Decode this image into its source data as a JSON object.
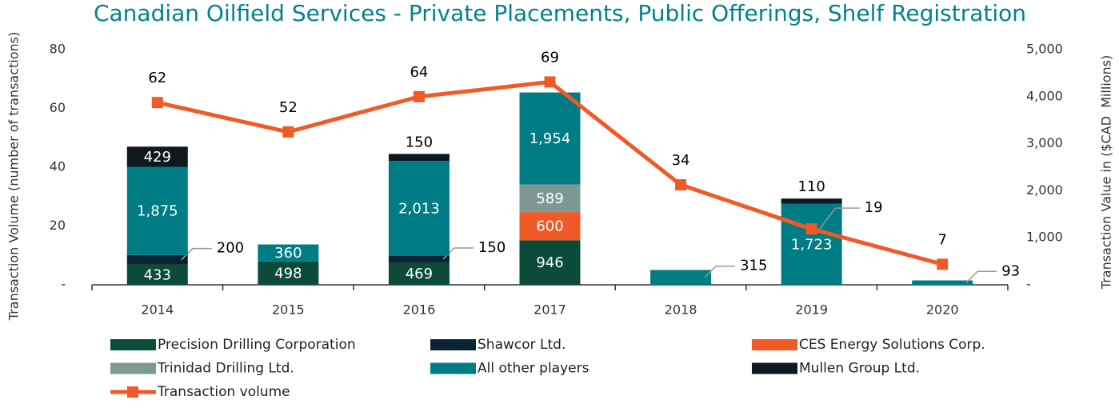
{
  "chart_data": {
    "type": "bar",
    "title": "Canadian Oilfield Services - Private Placements, Public Offerings, Shelf Registration",
    "y_label": "Transaction Volume (number of transactions)",
    "y2_label": "Transaction Value in ($CAD  Millions)",
    "categories": [
      "2014",
      "2015",
      "2016",
      "2017",
      "2018",
      "2019",
      "2020"
    ],
    "ylim": [
      0,
      80
    ],
    "yticks": [
      {
        "value": 0,
        "label": "-"
      },
      20,
      40,
      60,
      80
    ],
    "y2lim": [
      0,
      5000
    ],
    "y2ticks": [
      {
        "value": 0,
        "label": "-"
      },
      {
        "value": 1000,
        "label": "1,000"
      },
      {
        "value": 2000,
        "label": "2,000"
      },
      {
        "value": 3000,
        "label": "3,000"
      },
      {
        "value": 4000,
        "label": "4,000"
      },
      {
        "value": 5000,
        "label": "5,000"
      }
    ],
    "stacked": true,
    "series": [
      {
        "name": "Precision Drilling Corporation",
        "color": "#0c4b39",
        "axis": "y2",
        "values": [
          433,
          498,
          469,
          946,
          null,
          null,
          null
        ]
      },
      {
        "name": "Shawcor Ltd.",
        "color": "#0b2434",
        "axis": "y2",
        "values": [
          200,
          null,
          150,
          null,
          null,
          null,
          null
        ]
      },
      {
        "name": "CES Energy Solutions Corp.",
        "color": "#ef5a26",
        "axis": "y2",
        "values": [
          null,
          null,
          null,
          600,
          null,
          null,
          null
        ]
      },
      {
        "name": "Trinidad Drilling Ltd.",
        "color": "#7e9896",
        "axis": "y2",
        "values": [
          null,
          null,
          null,
          589,
          null,
          null,
          null
        ]
      },
      {
        "name": "All other players",
        "color": "#007c84",
        "axis": "y2",
        "values": [
          1875,
          360,
          2013,
          1954,
          315,
          1723,
          93
        ],
        "value_labels": [
          "1,875",
          "360",
          "2,013",
          "1,954",
          "315",
          "1,723",
          "93"
        ]
      },
      {
        "name": "Mullen Group Ltd.",
        "color": "#0e181d",
        "axis": "y2",
        "values": [
          429,
          null,
          150,
          null,
          null,
          110,
          null
        ]
      },
      {
        "name": "Transaction volume",
        "color": "#ef5a26",
        "type": "line",
        "axis": "y",
        "values": [
          62,
          52,
          64,
          69,
          34,
          19,
          7
        ]
      }
    ]
  }
}
